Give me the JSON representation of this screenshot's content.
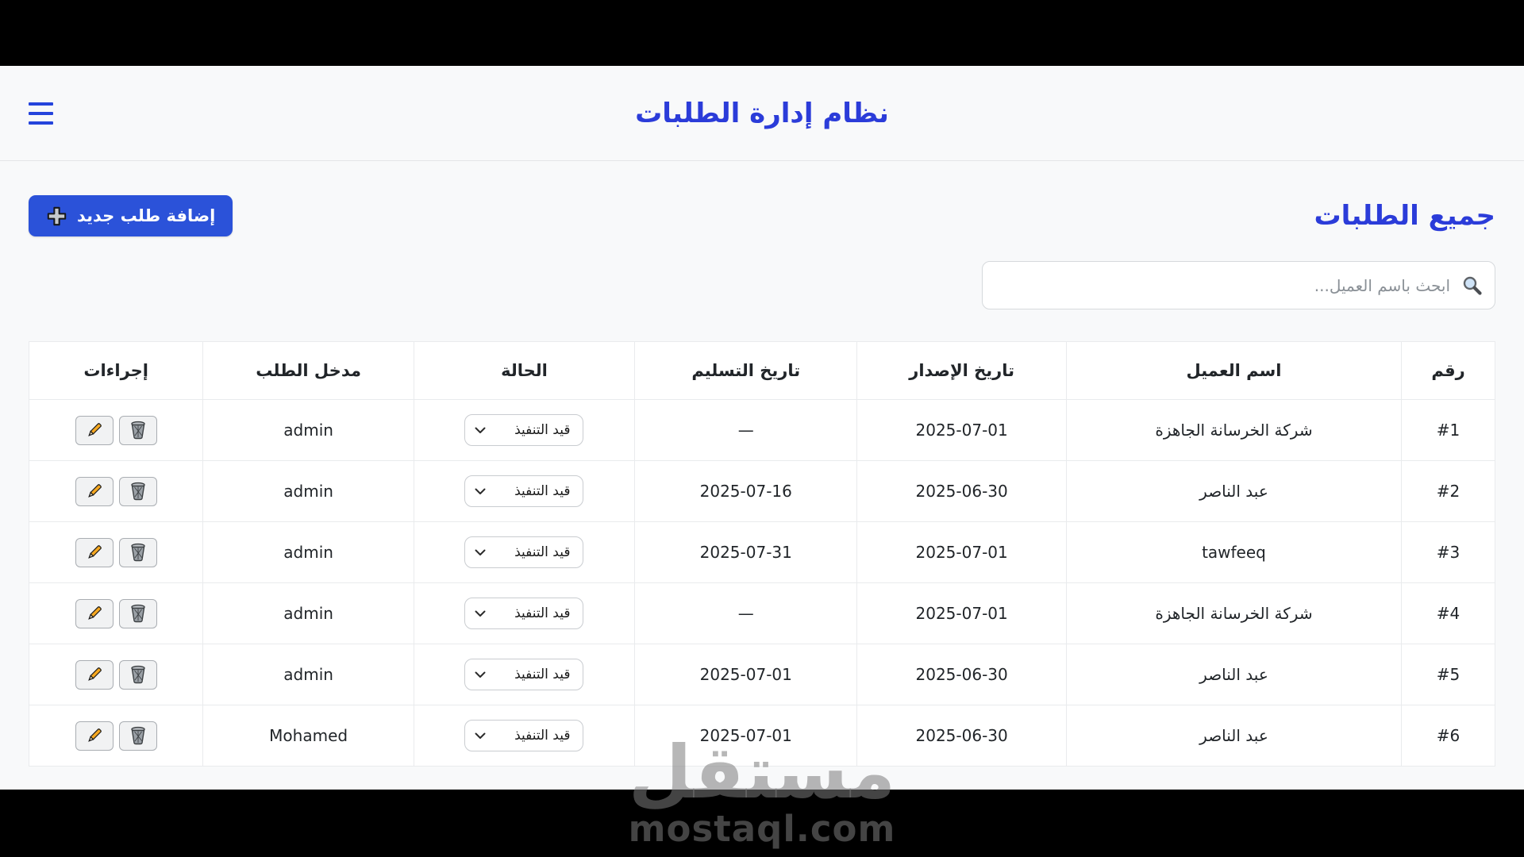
{
  "colors": {
    "accent_blue": "#2b3cd9",
    "button_blue": "#2b52d9",
    "bar_black": "#000000",
    "page_bg": "#f8f9fa"
  },
  "header": {
    "title": "نظام إدارة الطلبات",
    "menu_icon": "hamburger-icon"
  },
  "page": {
    "title": "جميع الطلبات",
    "add_button_label": "إضافة طلب جديد",
    "add_button_icon": "plus-icon"
  },
  "search": {
    "placeholder": "ابحث باسم العميل...",
    "icon": "magnifier-icon"
  },
  "table": {
    "headers": {
      "num": "رقم",
      "client": "اسم العميل",
      "issue_date": "تاريخ الإصدار",
      "delivery_date": "تاريخ التسليم",
      "status": "الحالة",
      "entered_by": "مدخل الطلب",
      "actions": "إجراءات"
    },
    "status_option_selected": "قيد التنفيذ",
    "action_icons": [
      "trash-icon",
      "pencil-icon"
    ],
    "rows": [
      {
        "num": "#1",
        "client": "شركة الخرسانة الجاهزة",
        "issue_date": "2025-07-01",
        "delivery_date": "—",
        "status": "قيد التنفيذ",
        "entered_by": "admin"
      },
      {
        "num": "#2",
        "client": "عبد الناصر",
        "issue_date": "2025-06-30",
        "delivery_date": "2025-07-16",
        "status": "قيد التنفيذ",
        "entered_by": "admin"
      },
      {
        "num": "#3",
        "client": "tawfeeq",
        "issue_date": "2025-07-01",
        "delivery_date": "2025-07-31",
        "status": "قيد التنفيذ",
        "entered_by": "admin"
      },
      {
        "num": "#4",
        "client": "شركة الخرسانة الجاهزة",
        "issue_date": "2025-07-01",
        "delivery_date": "—",
        "status": "قيد التنفيذ",
        "entered_by": "admin"
      },
      {
        "num": "#5",
        "client": "عبد الناصر",
        "issue_date": "2025-06-30",
        "delivery_date": "2025-07-01",
        "status": "قيد التنفيذ",
        "entered_by": "admin"
      },
      {
        "num": "#6",
        "client": "عبد الناصر",
        "issue_date": "2025-06-30",
        "delivery_date": "2025-07-01",
        "status": "قيد التنفيذ",
        "entered_by": "Mohamed"
      }
    ]
  },
  "watermark": {
    "logo_text": "مستقل",
    "domain": "mostaql.com"
  }
}
